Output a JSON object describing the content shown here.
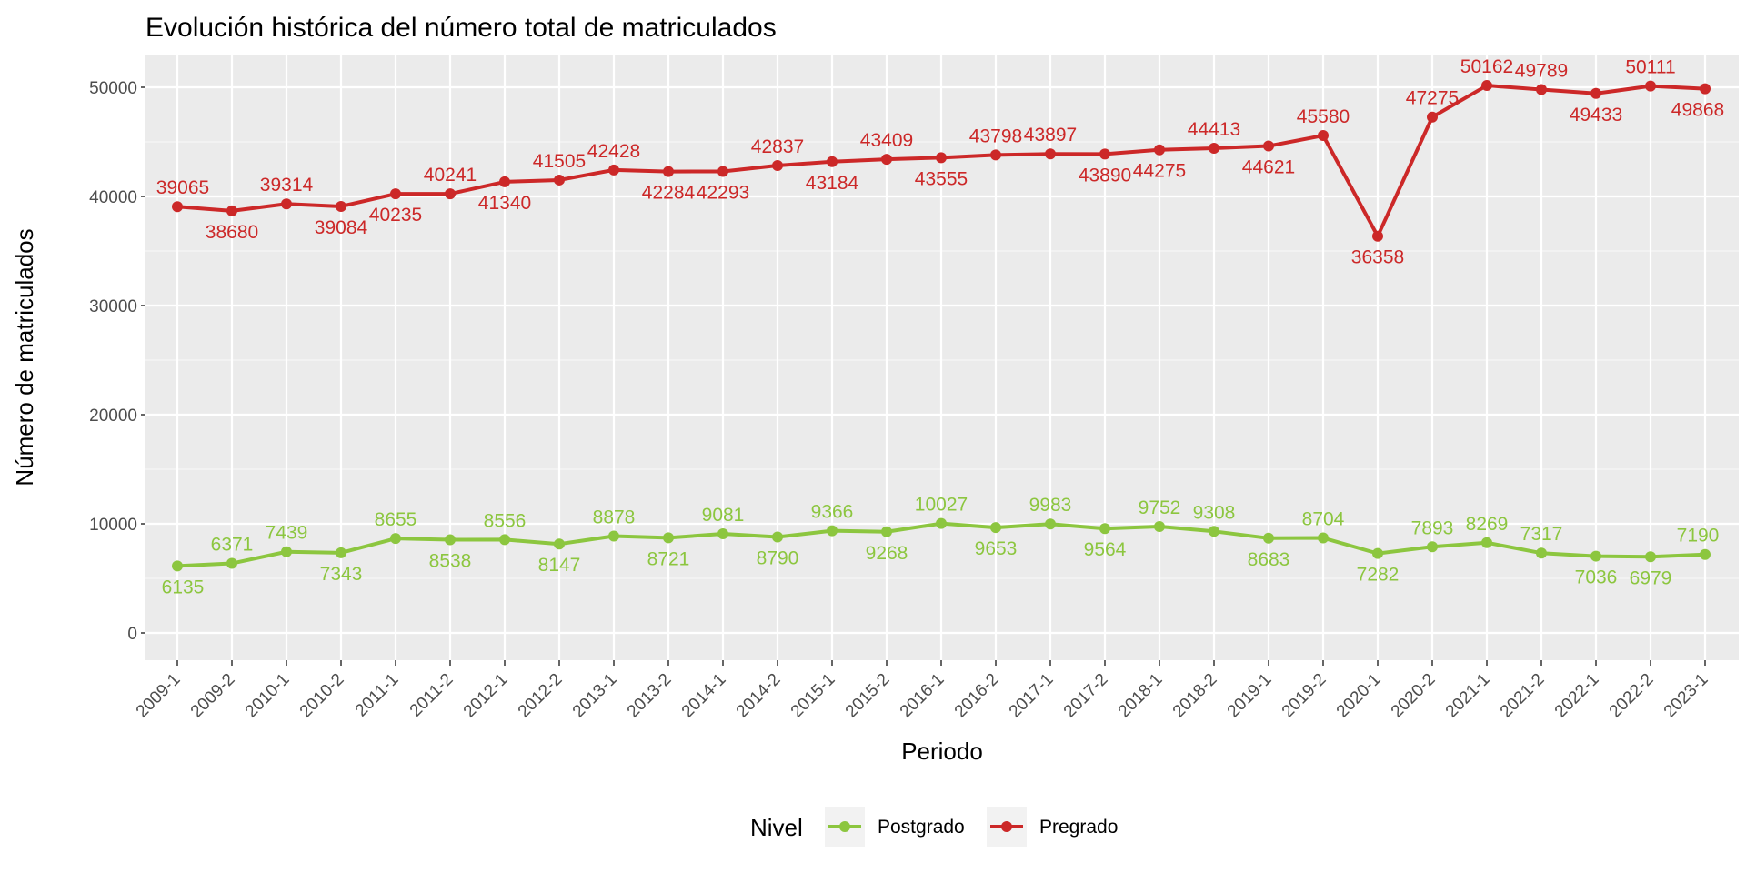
{
  "chart_data": {
    "type": "line",
    "title": "Evolución histórica del número total de matriculados",
    "xlabel": "Periodo",
    "ylabel": "Número de matriculados",
    "categories": [
      "2009-1",
      "2009-2",
      "2010-1",
      "2010-2",
      "2011-1",
      "2011-2",
      "2012-1",
      "2012-2",
      "2013-1",
      "2013-2",
      "2014-1",
      "2014-2",
      "2015-1",
      "2015-2",
      "2016-1",
      "2016-2",
      "2017-1",
      "2017-2",
      "2018-1",
      "2018-2",
      "2019-1",
      "2019-2",
      "2020-1",
      "2020-2",
      "2021-1",
      "2021-2",
      "2022-1",
      "2022-2",
      "2023-1"
    ],
    "ylim": [
      -2500,
      53000
    ],
    "yticks": [
      0,
      10000,
      20000,
      30000,
      40000,
      50000
    ],
    "grid": true,
    "legend": {
      "title": "Nivel",
      "position": "bottom"
    },
    "series": [
      {
        "name": "Postgrado",
        "color": "#8cc63f",
        "values": [
          6135,
          6371,
          7439,
          7343,
          8655,
          8538,
          8556,
          8147,
          8878,
          8721,
          9081,
          8790,
          9366,
          9268,
          10027,
          9653,
          9983,
          9564,
          9752,
          9308,
          8683,
          8704,
          7282,
          7893,
          8269,
          7317,
          7036,
          6979,
          7190
        ]
      },
      {
        "name": "Pregrado",
        "color": "#cc2828",
        "values": [
          39065,
          38680,
          39314,
          39084,
          40235,
          40241,
          41340,
          41505,
          42428,
          42284,
          42293,
          42837,
          43184,
          43409,
          43555,
          43798,
          43897,
          43890,
          44275,
          44413,
          44621,
          45580,
          36358,
          47275,
          50162,
          49789,
          49433,
          50111,
          49868
        ]
      }
    ]
  }
}
